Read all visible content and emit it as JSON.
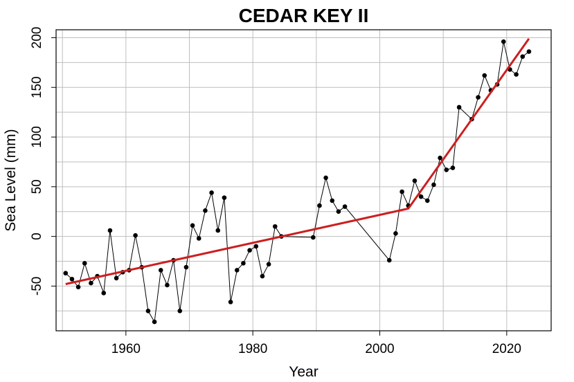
{
  "chart_data": {
    "type": "line",
    "title": "CEDAR KEY II",
    "xlabel": "Year",
    "ylabel": "Sea Level (mm)",
    "xlim": [
      1949,
      2027
    ],
    "ylim": [
      -95,
      208
    ],
    "x_ticks": [
      1960,
      1980,
      2000,
      2020
    ],
    "y_ticks": [
      -50,
      0,
      50,
      100,
      150,
      200
    ],
    "x_minor_grid": [
      1950,
      1960,
      1970,
      1980,
      1990,
      2000,
      2010,
      2020
    ],
    "y_minor_grid": [
      -75,
      -50,
      -25,
      0,
      25,
      50,
      75,
      100,
      125,
      150,
      175,
      200
    ],
    "grid": true,
    "colors": {
      "observed": "#000000",
      "trend": "#cc1f1f",
      "grid": "#bebebe"
    },
    "series": [
      {
        "role": "observed",
        "style": "line-with-points",
        "points": [
          [
            1950.5,
            -37
          ],
          [
            1951.5,
            -43
          ],
          [
            1952.5,
            -51
          ],
          [
            1953.5,
            -27
          ],
          [
            1954.5,
            -47
          ],
          [
            1955.5,
            -40
          ],
          [
            1956.5,
            -57
          ],
          [
            1957.5,
            6
          ],
          [
            1958.5,
            -42
          ],
          [
            1959.5,
            -36
          ],
          [
            1960.5,
            -34
          ],
          [
            1961.5,
            1
          ],
          [
            1962.5,
            -31
          ],
          [
            1963.5,
            -75
          ],
          [
            1964.5,
            -86
          ],
          [
            1965.5,
            -34
          ],
          [
            1966.5,
            -49
          ],
          [
            1967.5,
            -24
          ],
          [
            1968.5,
            -75
          ],
          [
            1969.5,
            -31
          ],
          [
            1970.5,
            11
          ],
          [
            1971.5,
            -2
          ],
          [
            1972.5,
            26
          ],
          [
            1973.5,
            44
          ],
          [
            1974.5,
            6
          ],
          [
            1975.5,
            39
          ],
          [
            1976.5,
            -66
          ],
          [
            1977.5,
            -34
          ],
          [
            1978.5,
            -27
          ],
          [
            1979.5,
            -14
          ],
          [
            1980.5,
            -10
          ],
          [
            1981.5,
            -40
          ],
          [
            1982.5,
            -28
          ],
          [
            1983.5,
            10
          ],
          [
            1984.5,
            0
          ],
          [
            1989.5,
            -1
          ],
          [
            1990.5,
            31
          ],
          [
            1991.5,
            59
          ],
          [
            1992.5,
            36
          ],
          [
            1993.5,
            25
          ],
          [
            1994.5,
            30
          ],
          [
            2001.5,
            -24
          ],
          [
            2002.5,
            3
          ],
          [
            2003.5,
            45
          ],
          [
            2004.5,
            31
          ],
          [
            2005.5,
            56
          ],
          [
            2006.5,
            40
          ],
          [
            2007.5,
            36
          ],
          [
            2008.5,
            52
          ],
          [
            2009.5,
            79
          ],
          [
            2010.5,
            67
          ],
          [
            2011.5,
            69
          ],
          [
            2012.5,
            130
          ],
          [
            2014.5,
            118
          ],
          [
            2015.5,
            140
          ],
          [
            2016.5,
            162
          ],
          [
            2017.5,
            147
          ],
          [
            2018.5,
            153
          ],
          [
            2019.5,
            196
          ],
          [
            2020.5,
            168
          ],
          [
            2021.5,
            163
          ],
          [
            2022.5,
            181
          ],
          [
            2023.5,
            186
          ]
        ]
      },
      {
        "role": "trend",
        "style": "line",
        "points": [
          [
            1950.5,
            -48
          ],
          [
            2004.5,
            28
          ],
          [
            2023.5,
            199
          ]
        ]
      }
    ]
  }
}
